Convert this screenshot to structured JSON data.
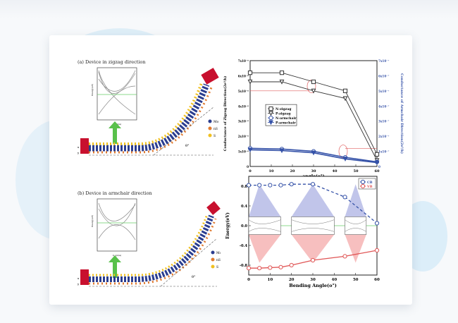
{
  "panel_a": {
    "caption": "(a) Device in zigzag direction",
    "band_ylabel": "Energy(eV)",
    "band_xlabel": "k_y(π/a)",
    "legend": [
      "Mo",
      "nS",
      "S"
    ],
    "angle_label": "θ°",
    "axis_x": "x",
    "axis_y": "y"
  },
  "panel_b": {
    "caption": "(b) Device in armchair direction",
    "band_ylabel": "Energy(eV)",
    "band_xlabel": "k_y(π/a)",
    "legend": [
      "Mo",
      "nS",
      "S"
    ],
    "angle_label": "θ°",
    "axis_x": "x",
    "axis_y": "y"
  },
  "chart_data": [
    {
      "type": "line",
      "xlabel": "angle(o°)",
      "ylabel_left": "Conductance of Zigzag Direction(2e²/h)",
      "ylabel_right": "Conductance of Armchair Direction(2e²/h)",
      "x_ticks": [
        "0",
        "10",
        "20",
        "30",
        "40",
        "50",
        "60"
      ],
      "y_left_ticks": [
        "0",
        "1x10⁻⁶",
        "2x10⁻⁶",
        "3x10⁻⁶",
        "4x10⁻⁶",
        "5x10⁻⁶",
        "6x10⁻⁶"
      ],
      "y_right_ticks": [
        "0",
        "1x10⁻⁷",
        "2x10⁻⁷",
        "3x10⁻⁷",
        "4x10⁻⁷",
        "5x10⁻⁷",
        "6x10⁻⁷",
        "7x10⁻⁷"
      ],
      "top_left_tick": "7x10⁻⁶",
      "xlim": [
        0,
        60
      ],
      "ylim": [
        0,
        7
      ],
      "legend_position": "center-left",
      "series": [
        {
          "name": "N-zigzag",
          "marker": "square",
          "color": "#333333",
          "x": [
            0,
            15,
            30,
            45,
            60
          ],
          "values": [
            6.2,
            6.2,
            5.6,
            5.0,
            0.8
          ]
        },
        {
          "name": "P-zigzag",
          "marker": "triangle-down",
          "color": "#333333",
          "x": [
            0,
            15,
            30,
            45,
            60
          ],
          "values": [
            5.6,
            5.6,
            5.0,
            4.5,
            0.4
          ]
        },
        {
          "name": "N-armchair",
          "marker": "circle",
          "color": "#3552a8",
          "x": [
            0,
            15,
            30,
            45,
            60
          ],
          "values": [
            1.2,
            1.15,
            1.0,
            0.6,
            0.3
          ]
        },
        {
          "name": "P-armchair",
          "marker": "triangle-down",
          "color": "#3552a8",
          "x": [
            0,
            15,
            30,
            45,
            60
          ],
          "values": [
            1.1,
            1.05,
            0.9,
            0.5,
            0.25
          ]
        }
      ]
    },
    {
      "type": "line",
      "xlabel": "Bending Angle(o°)",
      "ylabel": "Energy(eV)",
      "x_ticks": [
        "0",
        "10",
        "20",
        "30",
        "40",
        "50",
        "60"
      ],
      "y_ticks": [
        "-0.8",
        "-0.4",
        "0.0",
        "0.4",
        "0.8"
      ],
      "xlim": [
        0,
        60
      ],
      "ylim": [
        -1.0,
        1.0
      ],
      "legend_position": "top-right",
      "series": [
        {
          "name": "CB",
          "marker": "circle",
          "color": "#3552a8",
          "style": "dashed",
          "x": [
            0,
            5,
            10,
            15,
            20,
            30,
            45,
            60
          ],
          "values": [
            0.82,
            0.82,
            0.82,
            0.82,
            0.84,
            0.84,
            0.58,
            0.05
          ]
        },
        {
          "name": "VB",
          "marker": "circle",
          "color": "#e05555",
          "style": "solid",
          "x": [
            0,
            5,
            10,
            15,
            20,
            30,
            45,
            60
          ],
          "values": [
            -0.86,
            -0.86,
            -0.85,
            -0.84,
            -0.8,
            -0.7,
            -0.62,
            -0.5
          ]
        }
      ]
    }
  ]
}
